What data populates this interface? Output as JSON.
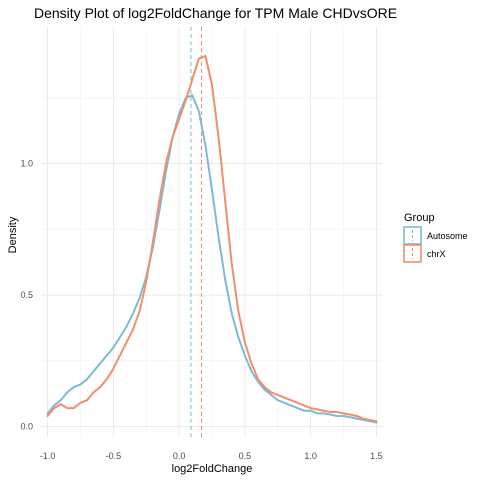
{
  "chart_data": {
    "type": "line",
    "title": "Density Plot of log2FoldChange for TPM Male CHDvsORE",
    "xlabel": "log2FoldChange",
    "ylabel": "Density",
    "xlim": [
      -1.05,
      1.55
    ],
    "ylim": [
      -0.04,
      1.52
    ],
    "x_ticks": [
      -1.0,
      -0.5,
      0.0,
      0.5,
      1.0,
      1.5
    ],
    "x_tick_labels": [
      "-1.0",
      "-0.5",
      "0.0",
      "0.5",
      "1.0",
      "1.5"
    ],
    "y_ticks": [
      0.0,
      0.5,
      1.0
    ],
    "y_tick_labels": [
      "0.0",
      "0.5",
      "1.0"
    ],
    "grid": true,
    "legend": {
      "title": "Group",
      "position": "right"
    },
    "series": [
      {
        "name": "Autosome",
        "color": "#7fbad3",
        "mean_line": 0.09,
        "x": [
          -1.0,
          -0.95,
          -0.9,
          -0.85,
          -0.8,
          -0.75,
          -0.7,
          -0.65,
          -0.6,
          -0.55,
          -0.5,
          -0.45,
          -0.4,
          -0.35,
          -0.3,
          -0.25,
          -0.2,
          -0.15,
          -0.1,
          -0.05,
          0.0,
          0.05,
          0.1,
          0.15,
          0.2,
          0.25,
          0.3,
          0.35,
          0.4,
          0.45,
          0.5,
          0.55,
          0.6,
          0.65,
          0.7,
          0.75,
          0.8,
          0.85,
          0.9,
          0.95,
          1.0,
          1.05,
          1.1,
          1.15,
          1.2,
          1.25,
          1.3,
          1.35,
          1.4,
          1.45,
          1.5
        ],
        "y": [
          0.05,
          0.08,
          0.1,
          0.13,
          0.15,
          0.16,
          0.18,
          0.21,
          0.24,
          0.27,
          0.3,
          0.34,
          0.38,
          0.43,
          0.49,
          0.57,
          0.68,
          0.82,
          0.97,
          1.1,
          1.19,
          1.25,
          1.26,
          1.2,
          1.07,
          0.9,
          0.72,
          0.56,
          0.43,
          0.34,
          0.27,
          0.21,
          0.17,
          0.14,
          0.12,
          0.1,
          0.09,
          0.08,
          0.07,
          0.06,
          0.06,
          0.05,
          0.05,
          0.045,
          0.04,
          0.04,
          0.035,
          0.03,
          0.025,
          0.02,
          0.015
        ]
      },
      {
        "name": "chrX",
        "color": "#ef8f6e",
        "mean_line": 0.17,
        "x": [
          -1.0,
          -0.95,
          -0.9,
          -0.85,
          -0.8,
          -0.75,
          -0.7,
          -0.65,
          -0.6,
          -0.55,
          -0.5,
          -0.45,
          -0.4,
          -0.35,
          -0.3,
          -0.25,
          -0.2,
          -0.15,
          -0.1,
          -0.05,
          0.0,
          0.05,
          0.1,
          0.15,
          0.2,
          0.25,
          0.3,
          0.35,
          0.4,
          0.45,
          0.5,
          0.55,
          0.6,
          0.65,
          0.7,
          0.75,
          0.8,
          0.85,
          0.9,
          0.95,
          1.0,
          1.05,
          1.1,
          1.15,
          1.2,
          1.25,
          1.3,
          1.35,
          1.4,
          1.45,
          1.5
        ],
        "y": [
          0.04,
          0.07,
          0.085,
          0.07,
          0.07,
          0.09,
          0.1,
          0.13,
          0.15,
          0.18,
          0.22,
          0.27,
          0.32,
          0.37,
          0.44,
          0.55,
          0.7,
          0.86,
          1.0,
          1.1,
          1.17,
          1.24,
          1.32,
          1.4,
          1.41,
          1.3,
          1.1,
          0.86,
          0.62,
          0.44,
          0.32,
          0.24,
          0.18,
          0.15,
          0.13,
          0.12,
          0.11,
          0.1,
          0.09,
          0.08,
          0.07,
          0.065,
          0.06,
          0.055,
          0.055,
          0.05,
          0.045,
          0.04,
          0.03,
          0.025,
          0.02
        ]
      }
    ]
  }
}
